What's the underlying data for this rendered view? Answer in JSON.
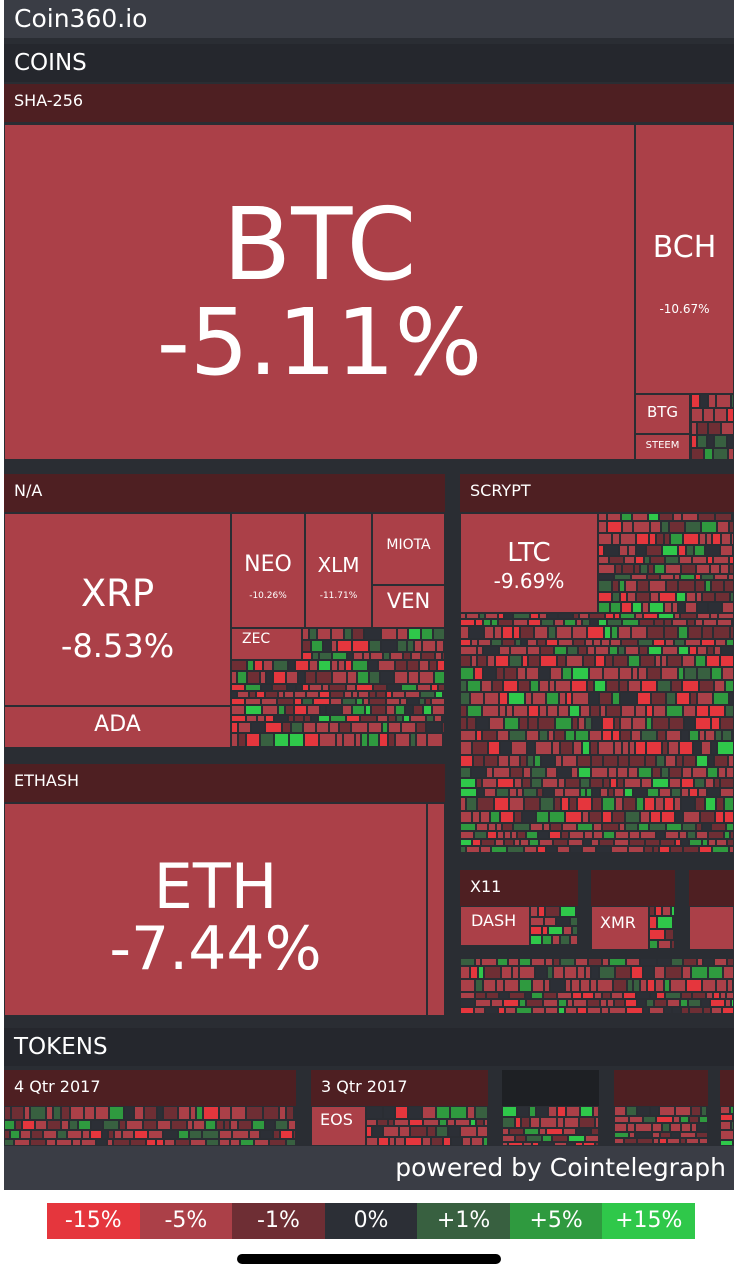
{
  "app": {
    "title": "Coin360.io",
    "footer": "powered by Cointelegraph"
  },
  "sections": {
    "coins": "COINS",
    "tokens": "TOKENS"
  },
  "groups": {
    "sha256": "SHA-256",
    "na": "N/A",
    "scrypt": "SCRYPT",
    "ethash": "ETHASH",
    "x11": "X11",
    "q4_2017": "4 Qtr 2017",
    "q3_2017": "3 Qtr 2017"
  },
  "coins": {
    "btc": {
      "symbol": "BTC",
      "change": "-5.11%"
    },
    "bch": {
      "symbol": "BCH",
      "change": "-10.67%"
    },
    "btg": {
      "symbol": "BTG"
    },
    "steem": {
      "symbol": "STEEM"
    },
    "xrp": {
      "symbol": "XRP",
      "change": "-8.53%"
    },
    "ada": {
      "symbol": "ADA"
    },
    "neo": {
      "symbol": "NEO",
      "change": "-10.26%"
    },
    "xlm": {
      "symbol": "XLM",
      "change": "-11.71%"
    },
    "miota": {
      "symbol": "MIOTA"
    },
    "ven": {
      "symbol": "VEN"
    },
    "zec": {
      "symbol": "ZEC"
    },
    "ltc": {
      "symbol": "LTC",
      "change": "-9.69%"
    },
    "eth": {
      "symbol": "ETH",
      "change": "-7.44%"
    },
    "dash": {
      "symbol": "DASH"
    },
    "xmr": {
      "symbol": "XMR"
    },
    "eos": {
      "symbol": "EOS"
    }
  },
  "legend": [
    {
      "label": "-15%",
      "color": "#e5363d"
    },
    {
      "label": "-5%",
      "color": "#ab4048"
    },
    {
      "label": "-1%",
      "color": "#6e2e34"
    },
    {
      "label": "0%",
      "color": "#2c2f36"
    },
    {
      "label": "+1%",
      "color": "#386040"
    },
    {
      "label": "+5%",
      "color": "#2f9a3f"
    },
    {
      "label": "+15%",
      "color": "#2fc84a"
    }
  ]
}
